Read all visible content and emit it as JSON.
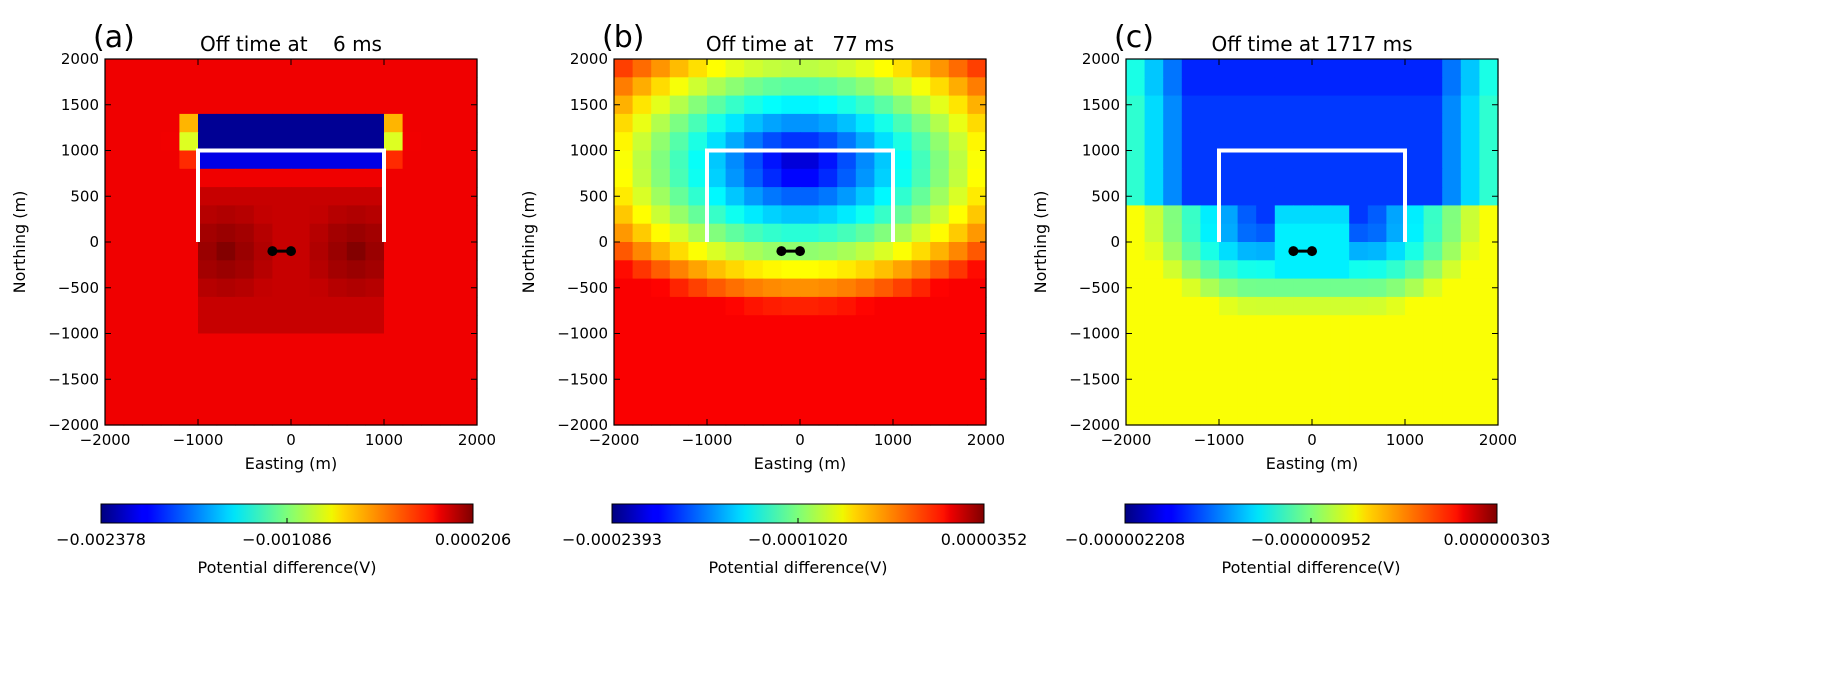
{
  "chart_data": [
    {
      "type": "heatmap",
      "panel_label": "(a)",
      "title": "Off time at    6 ms",
      "xlabel": "Easting (m)",
      "ylabel": "Northing (m)",
      "xlim": [
        -2000,
        2000
      ],
      "ylim": [
        -2000,
        2000
      ],
      "xticks": [
        "−2000",
        "−1000",
        "0",
        "1000",
        "2000"
      ],
      "yticks": [
        "2000",
        "1500",
        "1000",
        "500",
        "0",
        "−500",
        "−1000",
        "−1500",
        "−2000"
      ],
      "colorbar": {
        "label": "Potential difference(V)",
        "min": -0.002378,
        "max": 0.000206,
        "ticks": [
          "−0.002378",
          "−0.001086",
          "0.000206"
        ]
      },
      "loop_wire_xy": [
        [
          -1000,
          0
        ],
        [
          -1000,
          1000
        ],
        [
          1000,
          1000
        ],
        [
          1000,
          0
        ]
      ],
      "receiver_points": [
        [
          -200,
          -100
        ],
        [
          0,
          -100
        ]
      ]
    },
    {
      "type": "heatmap",
      "panel_label": "(b)",
      "title": "Off time at   77 ms",
      "xlabel": "Easting (m)",
      "ylabel": "Northing (m)",
      "xlim": [
        -2000,
        2000
      ],
      "ylim": [
        -2000,
        2000
      ],
      "xticks": [
        "−2000",
        "−1000",
        "0",
        "1000",
        "2000"
      ],
      "yticks": [
        "2000",
        "1500",
        "1000",
        "500",
        "0",
        "−500",
        "−1000",
        "−1500",
        "−2000"
      ],
      "colorbar": {
        "label": "Potential difference(V)",
        "min": -0.0002393,
        "max": 3.52e-05,
        "ticks": [
          "−0.0002393",
          "−0.0001020",
          "0.0000352"
        ]
      },
      "loop_wire_xy": [
        [
          -1000,
          0
        ],
        [
          -1000,
          1000
        ],
        [
          1000,
          1000
        ],
        [
          1000,
          0
        ]
      ],
      "receiver_points": [
        [
          -200,
          -100
        ],
        [
          0,
          -100
        ]
      ]
    },
    {
      "type": "heatmap",
      "panel_label": "(c)",
      "title": "Off time at 1717 ms",
      "xlabel": "Easting (m)",
      "ylabel": "Northing (m)",
      "xlim": [
        -2000,
        2000
      ],
      "ylim": [
        -2000,
        2000
      ],
      "xticks": [
        "−2000",
        "−1000",
        "0",
        "1000",
        "2000"
      ],
      "yticks": [
        "2000",
        "1500",
        "1000",
        "500",
        "0",
        "−500",
        "−1000",
        "−1500",
        "−2000"
      ],
      "colorbar": {
        "label": "Potential difference(V)",
        "min": -2.208e-06,
        "max": 3.03e-07,
        "ticks": [
          "−0.000002208",
          "−0.000000952",
          "0.000000303"
        ]
      },
      "loop_wire_xy": [
        [
          -1000,
          0
        ],
        [
          -1000,
          1000
        ],
        [
          1000,
          1000
        ],
        [
          1000,
          0
        ]
      ],
      "receiver_points": [
        [
          -200,
          -100
        ],
        [
          0,
          -100
        ]
      ]
    }
  ]
}
